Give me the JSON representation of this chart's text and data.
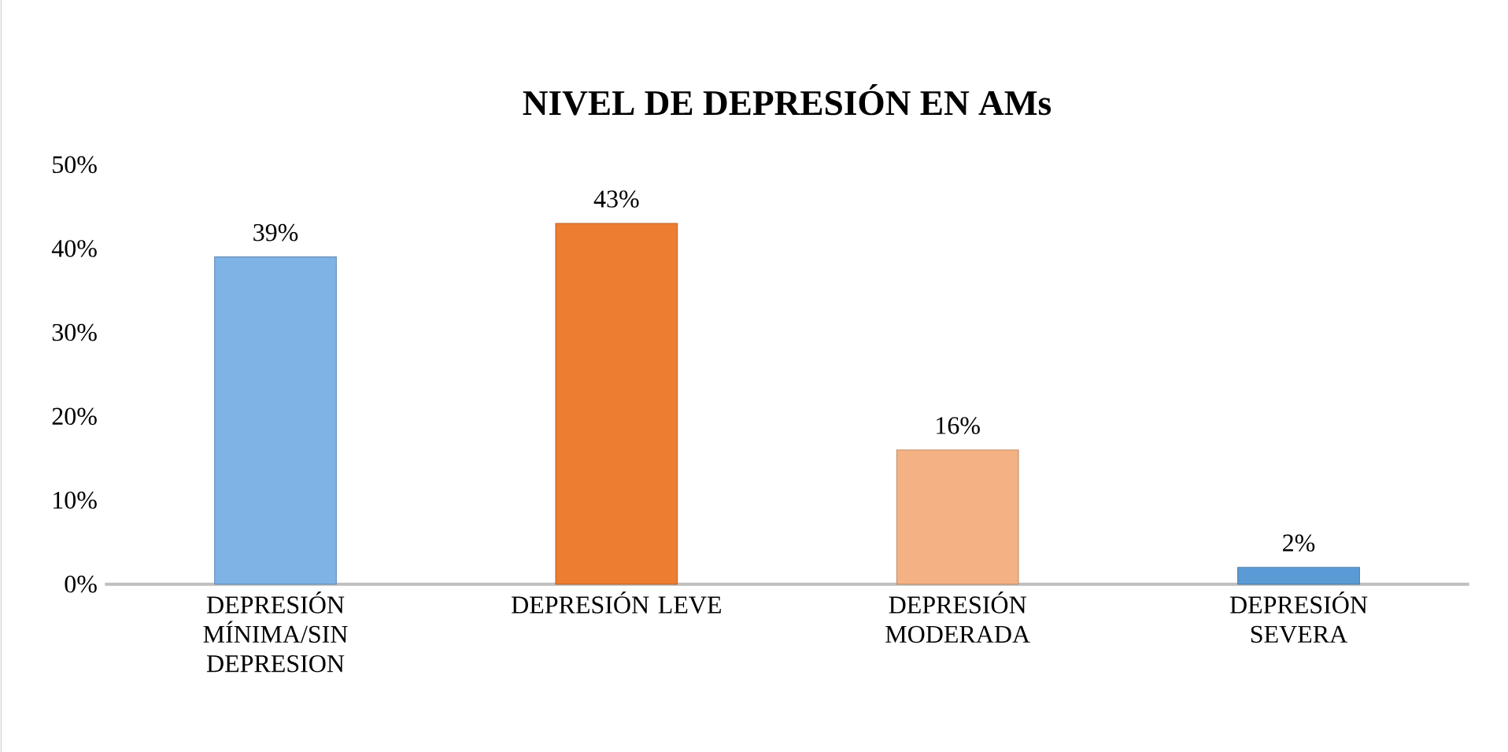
{
  "chart_data": {
    "type": "bar",
    "title": "NIVEL  DE DEPRESIÓN EN AMs",
    "categories": [
      "DEPRESIÓN MÍNIMA/SIN DEPRESION",
      "DEPRESIÓN LEVE",
      "DEPRESIÓN MODERADA",
      "DEPRESIÓN SEVERA"
    ],
    "values": [
      39,
      43,
      16,
      2
    ],
    "value_labels": [
      "39%",
      "43%",
      "16%",
      "2%"
    ],
    "colors": [
      "#7fb2e5",
      "#ed7d31",
      "#f4b183",
      "#5b9bd5"
    ],
    "ylim": [
      0,
      50
    ],
    "yticks": [
      {
        "value": 0,
        "label": "0%"
      },
      {
        "value": 10,
        "label": "10%"
      },
      {
        "value": 20,
        "label": "20%"
      },
      {
        "value": 30,
        "label": "30%"
      },
      {
        "value": 40,
        "label": "40%"
      },
      {
        "value": 50,
        "label": "50%"
      }
    ],
    "grid": false
  }
}
